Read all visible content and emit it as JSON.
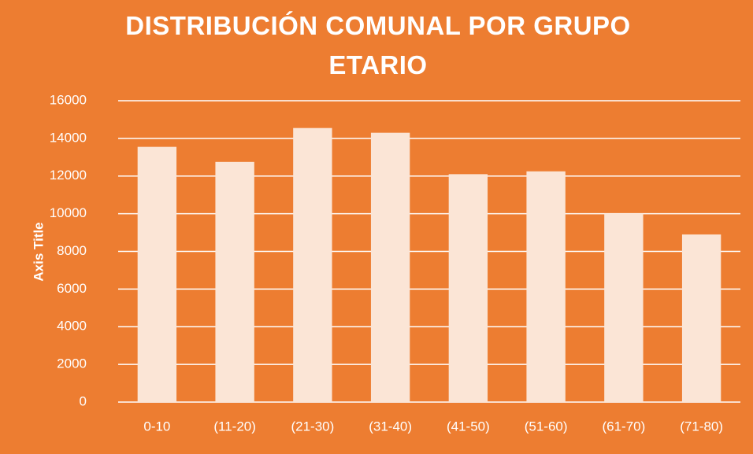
{
  "chart_data": {
    "type": "bar",
    "title": "DISTRIBUCIÓN COMUNAL POR GRUPO ETARIO",
    "y_axis_label": "Axis Title",
    "categories": [
      "0-10",
      "(11-20)",
      "(21-30)",
      "(31-40)",
      "(41-50)",
      "(51-60)",
      "(61-70)",
      "(71-80)"
    ],
    "values": [
      13550,
      12750,
      14550,
      14300,
      12100,
      12250,
      10000,
      8900
    ],
    "color": "#fbe5d6",
    "ylim": [
      0,
      16000
    ],
    "yticks": [
      0,
      2000,
      4000,
      6000,
      8000,
      10000,
      12000,
      14000,
      16000
    ],
    "grid": true
  }
}
